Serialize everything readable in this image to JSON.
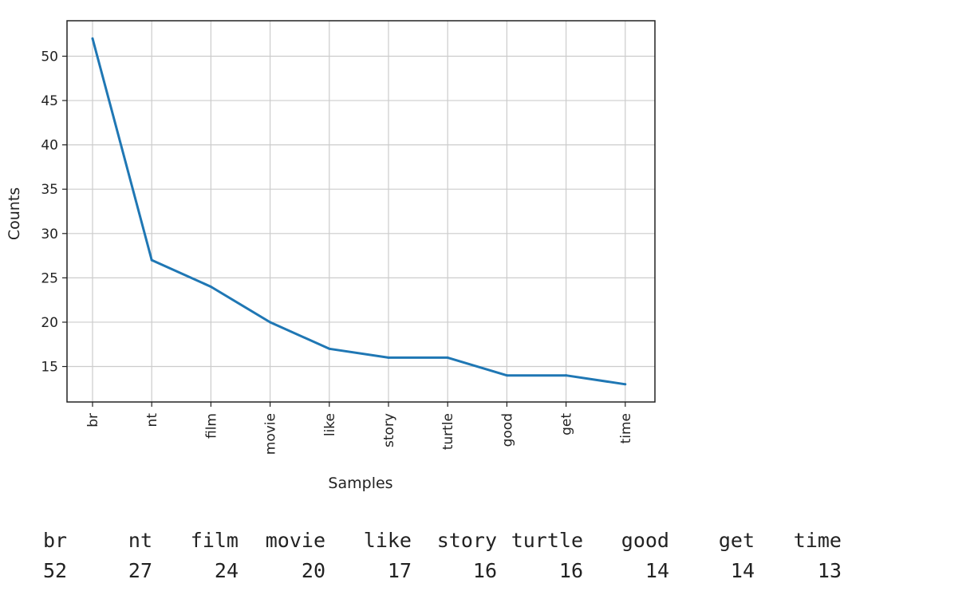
{
  "chart_data": {
    "type": "line",
    "categories": [
      "br",
      "nt",
      "film",
      "movie",
      "like",
      "story",
      "turtle",
      "good",
      "get",
      "time"
    ],
    "series": [
      {
        "values": [
          52,
          27,
          24,
          20,
          17,
          16,
          16,
          14,
          14,
          13
        ]
      }
    ],
    "xlabel": "Samples",
    "ylabel": "Counts",
    "yticks": [
      15,
      20,
      25,
      30,
      35,
      40,
      45,
      50
    ],
    "ylim": [
      11,
      54
    ],
    "grid": true,
    "color": "#1f77b4"
  },
  "table": {
    "headers": [
      "br",
      "nt",
      "film",
      "movie",
      "like",
      "story",
      "turtle",
      "good",
      "get",
      "time"
    ],
    "values": [
      "52",
      "27",
      "24",
      "20",
      "17",
      "16",
      "16",
      "14",
      "14",
      "13"
    ]
  }
}
